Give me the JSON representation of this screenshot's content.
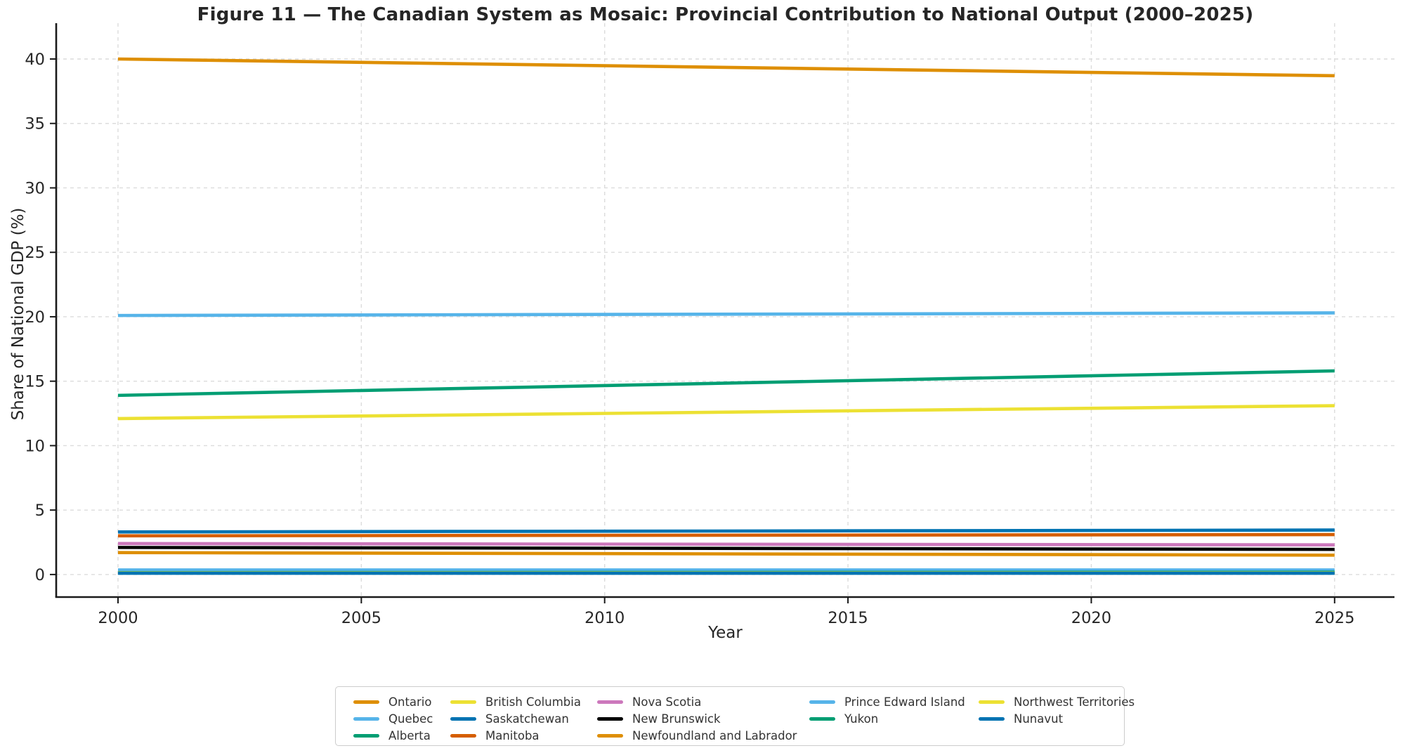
{
  "title": "Figure 11 — The Canadian System as Mosaic: Provincial Contribution to National Output (2000–2025)",
  "chart_data": {
    "type": "line",
    "title": "Figure 11 — The Canadian System as Mosaic: Provincial Contribution to National Output (2000–2025)",
    "xlabel": "Year",
    "ylabel": "Share of National GDP (%)",
    "x": [
      2000,
      2025
    ],
    "xticks": [
      2000,
      2005,
      2010,
      2015,
      2020,
      2025
    ],
    "yticks": [
      0,
      5,
      10,
      15,
      20,
      25,
      30,
      35,
      40
    ],
    "xlim": [
      1998.73,
      2026.23
    ],
    "ylim": [
      -1.75,
      42.78
    ],
    "grid": true,
    "grid_style": "dashed",
    "grid_color": "#dcdcdc",
    "spine_color": "#1a1a1a",
    "legend_position": "bottom",
    "series": [
      {
        "name": "Ontario",
        "color": "#DE8F05",
        "values": [
          40.0,
          38.7
        ]
      },
      {
        "name": "Quebec",
        "color": "#56B4E9",
        "values": [
          20.1,
          20.3
        ]
      },
      {
        "name": "Alberta",
        "color": "#029E73",
        "values": [
          13.9,
          15.8
        ]
      },
      {
        "name": "British Columbia",
        "color": "#ECE133",
        "values": [
          12.1,
          13.1
        ]
      },
      {
        "name": "Saskatchewan",
        "color": "#0173B2",
        "values": [
          3.3,
          3.45
        ]
      },
      {
        "name": "Manitoba",
        "color": "#D55E00",
        "values": [
          3.0,
          3.1
        ]
      },
      {
        "name": "Nova Scotia",
        "color": "#CC78BC",
        "values": [
          2.4,
          2.3
        ]
      },
      {
        "name": "New Brunswick",
        "color": "#000000",
        "values": [
          2.1,
          1.95
        ]
      },
      {
        "name": "Newfoundland and Labrador",
        "color": "#DE8F05",
        "values": [
          1.7,
          1.5
        ]
      },
      {
        "name": "Prince Edward Island",
        "color": "#56B4E9",
        "values": [
          0.35,
          0.35
        ]
      },
      {
        "name": "Yukon",
        "color": "#029E73",
        "values": [
          0.15,
          0.18
        ]
      },
      {
        "name": "Northwest Territories",
        "color": "#ECE133",
        "values": [
          0.13,
          0.13
        ]
      },
      {
        "name": "Nunavut",
        "color": "#0173B2",
        "values": [
          0.1,
          0.1
        ]
      }
    ],
    "legend_columns": [
      [
        "Ontario",
        "Quebec",
        "Alberta"
      ],
      [
        "British Columbia",
        "Saskatchewan",
        "Manitoba"
      ],
      [
        "Nova Scotia",
        "New Brunswick",
        "Newfoundland and Labrador"
      ],
      [
        "Prince Edward Island",
        "Yukon"
      ],
      [
        "Northwest Territories",
        "Nunavut"
      ]
    ]
  }
}
